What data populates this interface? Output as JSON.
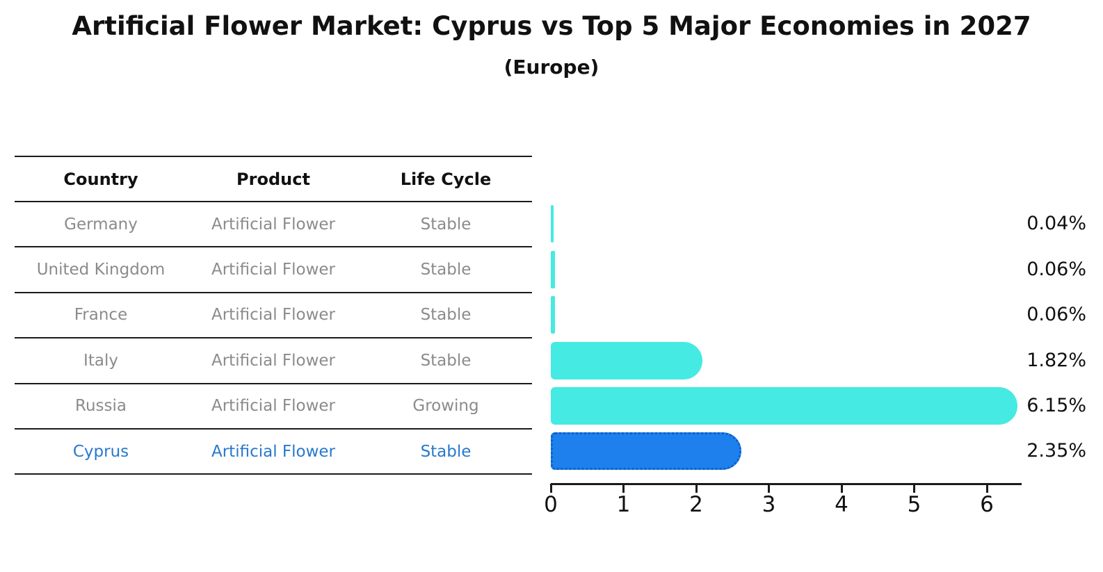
{
  "chart_data": {
    "type": "bar",
    "orientation": "horizontal",
    "title": "Artificial Flower Market: Cyprus vs Top 5 Major Economies in 2027",
    "subtitle": "(Europe)",
    "categories": [
      "Germany",
      "United Kingdom",
      "France",
      "Italy",
      "Russia",
      "Cyprus"
    ],
    "values": [
      0.04,
      0.06,
      0.06,
      1.82,
      6.15,
      2.35
    ],
    "value_labels": [
      "0.04%",
      "0.06%",
      "0.06%",
      "1.82%",
      "6.15%",
      "2.35%"
    ],
    "x_ticks": [
      "0",
      "1",
      "2",
      "3",
      "4",
      "5",
      "6"
    ],
    "xlim": [
      0,
      6.46
    ],
    "grid": false,
    "legend": "none",
    "highlight_index": 5,
    "colors": {
      "bar_default": "#45EAE2",
      "bar_highlight": "#1E80EC",
      "bar_highlight_border": "#0E5FCC",
      "highlight_text": "#2879CC",
      "table_text": "#8B8B8B",
      "axis": "#1A1A1A"
    }
  },
  "table": {
    "headers": [
      "Country",
      "Product",
      "Life Cycle"
    ],
    "rows": [
      {
        "country": "Germany",
        "product": "Artificial Flower",
        "life_cycle": "Stable",
        "highlight": false
      },
      {
        "country": "United Kingdom",
        "product": "Artificial Flower",
        "life_cycle": "Stable",
        "highlight": false
      },
      {
        "country": "France",
        "product": "Artificial Flower",
        "life_cycle": "Stable",
        "highlight": false
      },
      {
        "country": "Italy",
        "product": "Artificial Flower",
        "life_cycle": "Stable",
        "highlight": false
      },
      {
        "country": "Russia",
        "product": "Artificial Flower",
        "life_cycle": "Growing",
        "highlight": false
      },
      {
        "country": "Cyprus",
        "product": "Artificial Flower",
        "life_cycle": "Stable",
        "highlight": true
      }
    ]
  }
}
